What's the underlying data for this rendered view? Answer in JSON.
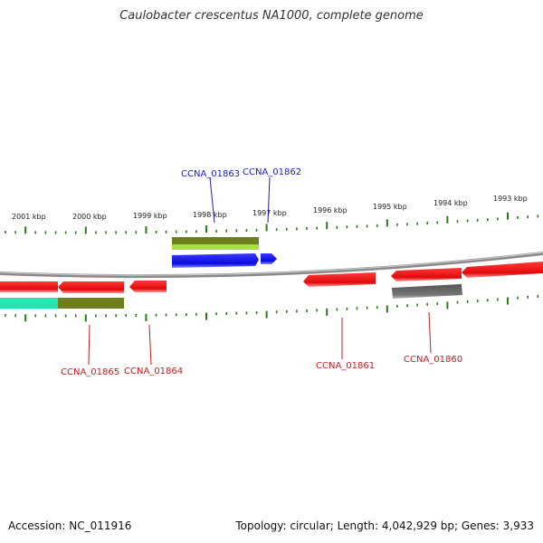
{
  "title": "Caulobacter crescentus NA1000, complete genome",
  "footer": {
    "accession": "Accession: NC_011916",
    "summary": "Topology: circular; Length: 4,042,929 bp; Genes: 3,933"
  },
  "scale": {
    "unit": "kbp",
    "ticks": [
      "2001 kbp",
      "2000 kbp",
      "1999 kbp",
      "1998 kbp",
      "1997 kbp",
      "1996 kbp",
      "1995 kbp",
      "1994 kbp",
      "1993 kbp"
    ]
  },
  "colors": {
    "forward_gene": "#1010e0",
    "reverse_gene": "#e81010",
    "label_forward": "#1a1acc",
    "label_reverse": "#cc1a1a",
    "tick": "#2a7a1a",
    "backbone": "#888888",
    "olive_feature": "#6e7d1e",
    "lime_feature": "#a6e03c",
    "teal_feature": "#2fe0b0",
    "grey_feature": "#666666"
  },
  "gene_labels": {
    "forward": [
      "CCNA_01863",
      "CCNA_01862"
    ],
    "reverse": [
      "CCNA_01865",
      "CCNA_01864",
      "CCNA_01861",
      "CCNA_01860"
    ]
  }
}
